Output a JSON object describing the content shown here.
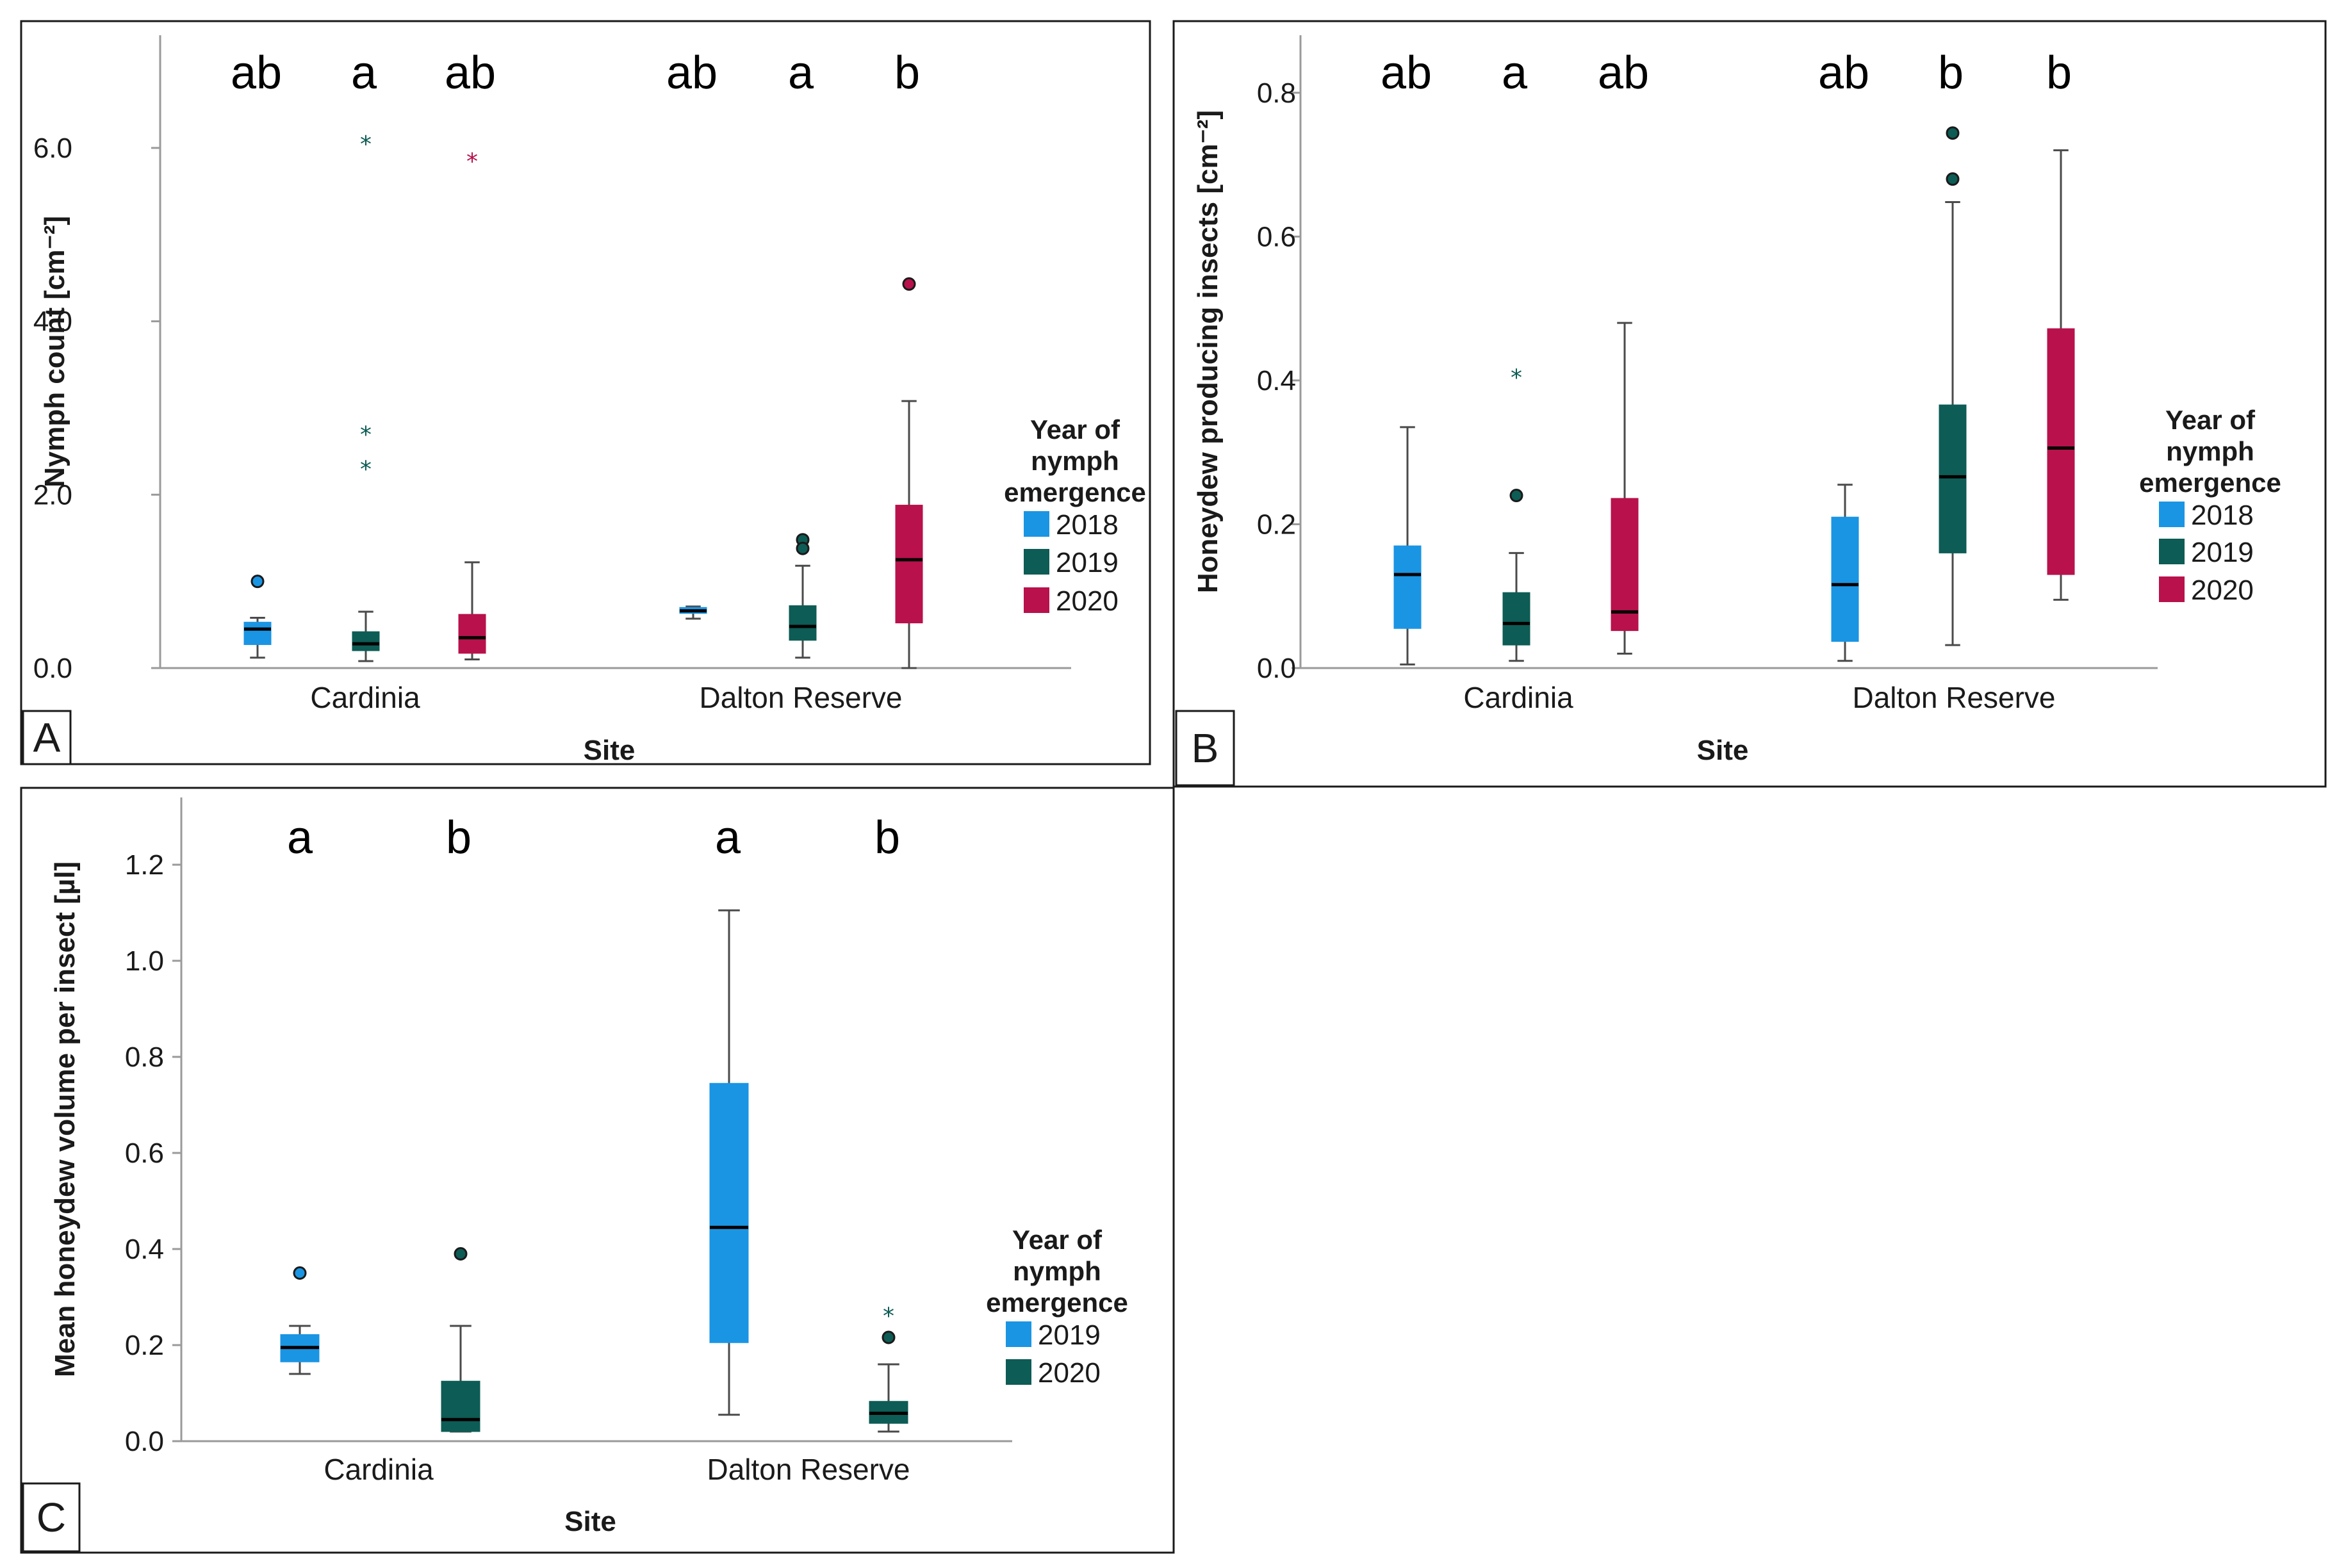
{
  "chart_data": [
    {
      "panel": "A",
      "type": "boxplot",
      "ylabel": "Nymph count [cm⁻²]",
      "xlabel": "Site",
      "ylim": [
        0,
        7.3
      ],
      "yticks": [
        0,
        2,
        4,
        6
      ],
      "ytick_labels": [
        "0.0",
        "2.0",
        "4.0",
        "6.0"
      ],
      "categories": [
        "Cardinia",
        "Dalton Reserve"
      ],
      "legend_title": [
        "Year of",
        "nymph",
        "emergence"
      ],
      "series": [
        {
          "name": "2018",
          "color": "#1a95e3",
          "boxes": [
            {
              "min": 0.12,
              "q1": 0.27,
              "median": 0.45,
              "q3": 0.53,
              "max": 0.58,
              "outliers": [
                1.0
              ],
              "extremes": []
            },
            {
              "min": 0.57,
              "q1": 0.63,
              "median": 0.66,
              "q3": 0.7,
              "max": 0.71,
              "outliers": [],
              "extremes": []
            }
          ]
        },
        {
          "name": "2019",
          "color": "#0d5c55",
          "boxes": [
            {
              "min": 0.08,
              "q1": 0.2,
              "median": 0.28,
              "q3": 0.42,
              "max": 0.65,
              "outliers": [],
              "extremes": [
                6.05,
                2.7,
                2.3
              ]
            },
            {
              "min": 0.12,
              "q1": 0.32,
              "median": 0.48,
              "q3": 0.72,
              "max": 1.18,
              "outliers": [
                1.48,
                1.38
              ],
              "extremes": []
            }
          ]
        },
        {
          "name": "2020",
          "color": "#b8114b",
          "boxes": [
            {
              "min": 0.1,
              "q1": 0.17,
              "median": 0.35,
              "q3": 0.62,
              "max": 1.22,
              "outliers": [],
              "extremes": [
                5.85
              ]
            },
            {
              "min": 0.0,
              "q1": 0.52,
              "median": 1.25,
              "q3": 1.88,
              "max": 3.08,
              "outliers": [
                4.43
              ],
              "extremes": []
            }
          ]
        }
      ],
      "letters": [
        [
          "ab",
          "a",
          "ab"
        ],
        [
          "ab",
          "a",
          "b"
        ]
      ],
      "panel_tag": "A"
    },
    {
      "panel": "B",
      "type": "boxplot",
      "ylabel": "Honeydew producing insects [cm⁻²]",
      "xlabel": "Site",
      "ylim": [
        0,
        0.88
      ],
      "yticks": [
        0,
        0.2,
        0.4,
        0.6,
        0.8
      ],
      "ytick_labels": [
        "0.0",
        "0.2",
        "0.4",
        "0.6",
        "0.8"
      ],
      "categories": [
        "Cardinia",
        "Dalton Reserve"
      ],
      "legend_title": [
        "Year of",
        "nymph",
        "emergence"
      ],
      "series": [
        {
          "name": "2018",
          "color": "#1a95e3",
          "boxes": [
            {
              "min": 0.005,
              "q1": 0.055,
              "median": 0.13,
              "q3": 0.17,
              "max": 0.335,
              "outliers": [],
              "extremes": []
            },
            {
              "min": 0.01,
              "q1": 0.037,
              "median": 0.116,
              "q3": 0.21,
              "max": 0.255,
              "outliers": [],
              "extremes": []
            }
          ]
        },
        {
          "name": "2019",
          "color": "#0d5c55",
          "boxes": [
            {
              "min": 0.01,
              "q1": 0.032,
              "median": 0.062,
              "q3": 0.105,
              "max": 0.16,
              "outliers": [
                0.24
              ],
              "extremes": [
                0.405
              ]
            },
            {
              "min": 0.032,
              "q1": 0.16,
              "median": 0.266,
              "q3": 0.366,
              "max": 0.648,
              "outliers": [
                0.744,
                0.68
              ],
              "extremes": []
            }
          ]
        },
        {
          "name": "2020",
          "color": "#b8114b",
          "boxes": [
            {
              "min": 0.02,
              "q1": 0.052,
              "median": 0.078,
              "q3": 0.236,
              "max": 0.48,
              "outliers": [],
              "extremes": []
            },
            {
              "min": 0.095,
              "q1": 0.13,
              "median": 0.306,
              "q3": 0.472,
              "max": 0.72,
              "outliers": [],
              "extremes": []
            }
          ]
        }
      ],
      "letters": [
        [
          "ab",
          "a",
          "ab"
        ],
        [
          "ab",
          "b",
          "b"
        ]
      ],
      "panel_tag": "B"
    },
    {
      "panel": "C",
      "type": "boxplot",
      "ylabel": "Mean honeydew volume per insect [µl]",
      "xlabel": "Site",
      "ylim": [
        0,
        1.34
      ],
      "yticks": [
        0,
        0.2,
        0.4,
        0.6,
        0.8,
        1.0,
        1.2
      ],
      "ytick_labels": [
        "0.0",
        "0.2",
        "0.4",
        "0.6",
        "0.8",
        "1.0",
        "1.2"
      ],
      "categories": [
        "Cardinia",
        "Dalton Reserve"
      ],
      "legend_title": [
        "Year of",
        "nymph",
        "emergence"
      ],
      "series": [
        {
          "name": "2019",
          "color": "#1a95e3",
          "boxes": [
            {
              "min": 0.14,
              "q1": 0.165,
              "median": 0.195,
              "q3": 0.222,
              "max": 0.24,
              "outliers": [
                0.35
              ],
              "extremes": []
            },
            {
              "min": 0.055,
              "q1": 0.205,
              "median": 0.445,
              "q3": 0.745,
              "max": 1.105,
              "outliers": [],
              "extremes": []
            }
          ]
        },
        {
          "name": "2020",
          "color": "#0d5c55",
          "boxes": [
            {
              "min": 0.02,
              "q1": 0.02,
              "median": 0.045,
              "q3": 0.125,
              "max": 0.24,
              "outliers": [
                0.39
              ],
              "extremes": []
            },
            {
              "min": 0.02,
              "q1": 0.037,
              "median": 0.058,
              "q3": 0.083,
              "max": 0.16,
              "outliers": [
                0.216
              ],
              "extremes": [
                0.262
              ]
            }
          ]
        }
      ],
      "letters": [
        [
          "a",
          "b"
        ],
        [
          "a",
          "b"
        ]
      ],
      "panel_tag": "C"
    }
  ]
}
